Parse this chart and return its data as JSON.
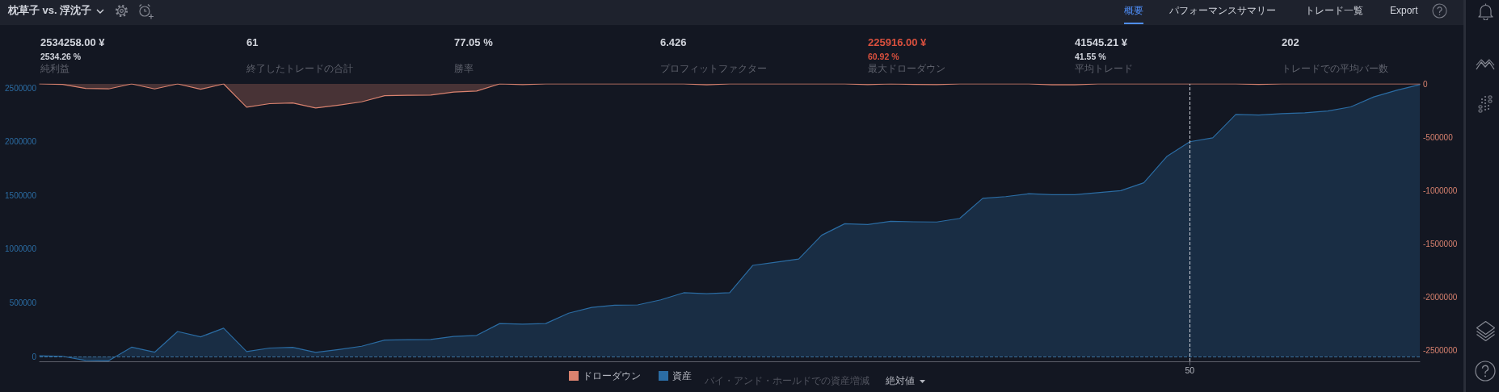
{
  "chart_data": [
    {
      "type": "other",
      "title": "枕草子 vs. 浮沈子",
      "annotations": [
        "概要",
        "パフォーマンスサマリー",
        "トレード一覧",
        "Export"
      ]
    },
    {
      "type": "other",
      "annotations": [
        "2534258.00 ¥",
        "2534.26 %",
        "純利益",
        "61",
        "終了したトレードの合計",
        "77.05 %",
        "勝率",
        "6.426",
        "プロフィットファクター",
        "225916.00 ¥",
        "60.92 %",
        "最大ドローダウン",
        "41545.21 ¥",
        "41.55 %",
        "平均トレード",
        "202",
        "トレードでの平均バー数"
      ]
    },
    {
      "type": "area",
      "categories": [
        null,
        null,
        null,
        null,
        null,
        null,
        null,
        null,
        null,
        null,
        null,
        null,
        null,
        null,
        null,
        null,
        null,
        null,
        null,
        null,
        null,
        null,
        null,
        null,
        null,
        null,
        null,
        null,
        null,
        null,
        null,
        null,
        null,
        null,
        null,
        null,
        null,
        null,
        null,
        null,
        null,
        null,
        null,
        null,
        null,
        null,
        null,
        null,
        null,
        null,
        "50",
        null,
        null,
        null,
        null,
        null,
        null,
        null,
        null,
        null,
        null
      ],
      "series": [
        {
          "name": "ドローダウン",
          "color": "#d9826f",
          "axis": "y2",
          "values": [
            0,
            -5000,
            -43000,
            -47000,
            0,
            -47000,
            0,
            -50000,
            0,
            -218000,
            -185000,
            -178000,
            -226000,
            -199000,
            -168000,
            -111000,
            -107000,
            -105000,
            -77000,
            -67000,
            0,
            -6000,
            0,
            0,
            0,
            0,
            0,
            0,
            0,
            -9000,
            0,
            0,
            0,
            0,
            0,
            0,
            -7000,
            0,
            -5000,
            -7000,
            0,
            0,
            0,
            0,
            -9000,
            -9000,
            0,
            0,
            0,
            0,
            0,
            0,
            0,
            -5000,
            0,
            0,
            0,
            0,
            0,
            0,
            0
          ]
        },
        {
          "name": "資産",
          "color": "#2b6ca3",
          "values": [
            7000,
            2000,
            -36000,
            -40000,
            87000,
            40000,
            233000,
            183000,
            264000,
            46000,
            79000,
            86000,
            38000,
            65000,
            96000,
            153000,
            157000,
            159000,
            187000,
            197000,
            307000,
            301000,
            307000,
            404000,
            457000,
            478000,
            481000,
            528000,
            594000,
            585000,
            594000,
            849000,
            879000,
            909000,
            1130000,
            1237000,
            1230000,
            1260000,
            1255000,
            1253000,
            1287000,
            1474000,
            1490000,
            1517000,
            1508000,
            1508000,
            1526000,
            1545000,
            1619000,
            1863000,
            2001000,
            2038000,
            2255000,
            2250000,
            2263000,
            2271000,
            2287000,
            2326000,
            2419000,
            2481000,
            2534000
          ]
        }
      ],
      "ylim": [
        -45000,
        2540000
      ],
      "yticks": [
        0,
        500000,
        1000000,
        1500000,
        2000000,
        2500000
      ],
      "y2lim": [
        -2600000,
        0
      ],
      "y2ticks": [
        -2500000,
        -2000000,
        -1500000,
        -1000000,
        -500000,
        0
      ],
      "ref_lines": [
        {
          "axis": "y",
          "value": 0,
          "color": "#3a6f9a",
          "line_style": "dashed"
        },
        {
          "axis": "x",
          "value": "50",
          "color": "#d1d4dc",
          "line_style": "dashed"
        }
      ],
      "legend": "bottom",
      "marker": "none",
      "annotations": [
        "バイ・アンド・ホールドでの資産増減",
        "絶対値"
      ]
    }
  ]
}
